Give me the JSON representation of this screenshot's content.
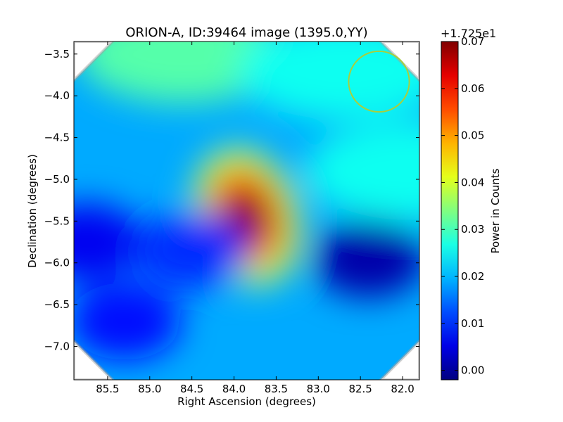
{
  "chart_data": {
    "type": "heatmap",
    "title": "ORION-A, ID:39464 image (1395.0,YY)",
    "xlabel": "Right Ascension (degrees)",
    "ylabel": "Declination (degrees)",
    "xlim": [
      85.9,
      81.8
    ],
    "ylim": [
      -7.4,
      -3.35
    ],
    "x_ticks": [
      85.5,
      85.0,
      84.5,
      84.0,
      83.5,
      83.0,
      82.5,
      82.0
    ],
    "x_tick_labels": [
      "85.5",
      "85.0",
      "84.5",
      "84.0",
      "83.5",
      "83.0",
      "82.5",
      "82.0"
    ],
    "y_ticks": [
      -3.5,
      -4.0,
      -4.5,
      -5.0,
      -5.5,
      -6.0,
      -6.5,
      -7.0
    ],
    "y_tick_labels": [
      "−3.5",
      "−4.0",
      "−4.5",
      "−5.0",
      "−5.5",
      "−6.0",
      "−6.5",
      "−7.0"
    ],
    "colormap": "jet",
    "colorbar": {
      "label": "Power in Counts",
      "offset_text": "+1.725e1",
      "range": [
        -0.002,
        0.07
      ],
      "ticks": [
        0.0,
        0.01,
        0.02,
        0.03,
        0.04,
        0.05,
        0.06,
        0.07
      ],
      "tick_labels": [
        "0.00",
        "0.01",
        "0.02",
        "0.03",
        "0.04",
        "0.05",
        "0.06",
        "0.07"
      ]
    },
    "features": [
      {
        "type": "background",
        "value": 0.019
      },
      {
        "type": "peak",
        "ra": 83.85,
        "dec": -5.45,
        "value": 0.07
      },
      {
        "type": "high_region",
        "ra": 84.6,
        "dec": -3.5,
        "value": 0.031
      },
      {
        "type": "high_region",
        "ra": 82.7,
        "dec": -3.7,
        "value": 0.026
      },
      {
        "type": "high_region",
        "ra": 81.9,
        "dec": -4.9,
        "value": 0.026
      },
      {
        "type": "low_region",
        "ra": 82.4,
        "dec": -5.95,
        "value": 0.001
      },
      {
        "type": "low_region",
        "ra": 85.75,
        "dec": -5.75,
        "value": 0.006
      },
      {
        "type": "low_region",
        "ra": 84.5,
        "dec": -5.85,
        "value": 0.01
      },
      {
        "type": "low_region",
        "ra": 85.3,
        "dec": -6.7,
        "value": 0.008
      }
    ],
    "beam_circle": {
      "ra": 82.28,
      "dec": -3.83,
      "radius_deg": 0.36,
      "color": "#a8cf3c"
    },
    "mask_color": "#ffffff",
    "mask_edge_color": "#a0a0a0"
  }
}
